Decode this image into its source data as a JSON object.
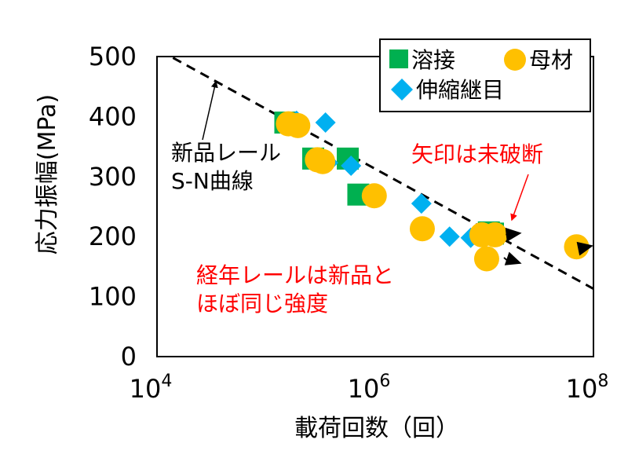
{
  "chart_data": {
    "type": "scatter",
    "title": "",
    "xlabel": "載荷回数（回）",
    "ylabel": "応力振幅(MPa)",
    "x_scale": "log",
    "xlim": [
      10000,
      100000000
    ],
    "ylim": [
      0,
      500
    ],
    "x_ticks": [
      {
        "value": 10000,
        "base": "10",
        "exp": "4"
      },
      {
        "value": 1000000,
        "base": "10",
        "exp": "6"
      },
      {
        "value": 100000000,
        "base": "10",
        "exp": "8"
      }
    ],
    "y_ticks": [
      0,
      100,
      200,
      300,
      400,
      500
    ],
    "grid": false,
    "legend_position": "top-right",
    "series": [
      {
        "name": "溶接",
        "marker": "square",
        "color": "#00b050",
        "points": [
          {
            "x": 150000,
            "y": 390
          },
          {
            "x": 270000,
            "y": 330
          },
          {
            "x": 560000,
            "y": 330
          },
          {
            "x": 700000,
            "y": 270
          },
          {
            "x": 11000000,
            "y": 207
          },
          {
            "x": 12000000,
            "y": 205
          }
        ]
      },
      {
        "name": "母材",
        "marker": "circle",
        "color": "#ffc000",
        "points": [
          {
            "x": 160000,
            "y": 388
          },
          {
            "x": 195000,
            "y": 385
          },
          {
            "x": 295000,
            "y": 328
          },
          {
            "x": 330000,
            "y": 325
          },
          {
            "x": 980000,
            "y": 268
          },
          {
            "x": 2700000,
            "y": 213
          },
          {
            "x": 9500000,
            "y": 203
          },
          {
            "x": 10500000,
            "y": 163
          },
          {
            "x": 12500000,
            "y": 203
          },
          {
            "x": 70000000,
            "y": 183
          }
        ]
      },
      {
        "name": "伸縮継目",
        "marker": "diamond",
        "color": "#00b0f0",
        "points": [
          {
            "x": 190000,
            "y": 393
          },
          {
            "x": 350000,
            "y": 390
          },
          {
            "x": 370000,
            "y": 323
          },
          {
            "x": 600000,
            "y": 318
          },
          {
            "x": 950000,
            "y": 265
          },
          {
            "x": 2650000,
            "y": 255
          },
          {
            "x": 4800000,
            "y": 200
          },
          {
            "x": 7500000,
            "y": 198
          }
        ]
      }
    ],
    "sn_curve": {
      "style": "dashed",
      "color": "#000000",
      "points": [
        {
          "x": 14000,
          "y": 498
        },
        {
          "x": 100000000,
          "y": 113
        }
      ]
    },
    "runout_arrows": [
      {
        "from": {
          "x": 12500000,
          "y": 203
        },
        "to": {
          "x": 22000000,
          "y": 206
        }
      },
      {
        "from": {
          "x": 12000000,
          "y": 165
        },
        "to": {
          "x": 22000000,
          "y": 155
        }
      },
      {
        "from": {
          "x": 70000000,
          "y": 183
        },
        "to": {
          "x": 100000000,
          "y": 185
        }
      }
    ],
    "annotations": [
      {
        "id": "sn-label",
        "lines": [
          "新品レール",
          "S-N曲線"
        ],
        "color": "#000000"
      },
      {
        "id": "runout-label",
        "lines": [
          "矢印は未破断"
        ],
        "color": "#ff0000"
      },
      {
        "id": "aged-label",
        "lines": [
          "経年レールは新品と",
          "ほぼ同じ強度"
        ],
        "color": "#ff0000"
      }
    ]
  }
}
